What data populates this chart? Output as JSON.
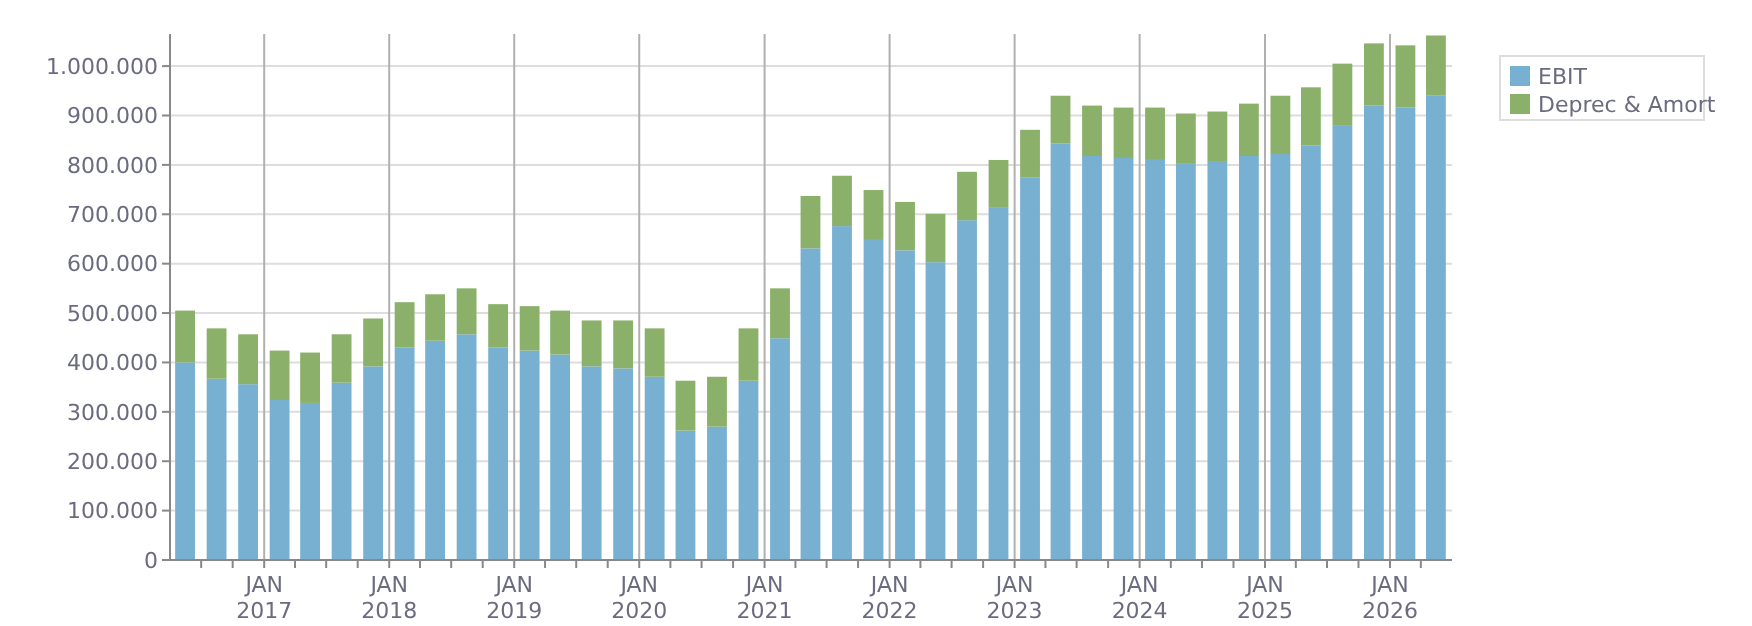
{
  "chart_data": {
    "type": "bar",
    "stacked": true,
    "legend": "top right",
    "grid": true,
    "x": [
      "2016-05-15",
      "2016-08-15",
      "2016-11-15",
      "2017-02-15",
      "2017-05-15",
      "2017-08-15",
      "2017-11-15",
      "2018-02-15",
      "2018-05-15",
      "2018-08-15",
      "2018-11-15",
      "2019-02-15",
      "2019-05-15",
      "2019-08-15",
      "2019-11-15",
      "2020-02-15",
      "2020-05-15",
      "2020-08-15",
      "2020-11-15",
      "2021-02-15",
      "2021-05-15",
      "2021-08-15",
      "2021-11-15",
      "2022-02-15",
      "2022-05-15",
      "2022-08-15",
      "2022-11-15",
      "2023-02-15",
      "2023-05-15",
      "2023-08-15",
      "2023-11-15",
      "2024-02-15",
      "2024-05-15",
      "2024-08-15",
      "2024-11-15",
      "2025-02-15",
      "2025-05-15",
      "2025-08-15",
      "2025-11-15",
      "2026-02-15",
      "2026-05-15"
    ],
    "series": [
      {
        "name": "EBIT",
        "color": "#78b0d2",
        "values": [
          400000,
          367000,
          356000,
          324000,
          318000,
          359000,
          392000,
          430000,
          444000,
          457000,
          430000,
          424000,
          416000,
          392000,
          388000,
          371000,
          262000,
          270000,
          363000,
          449000,
          631000,
          676000,
          648000,
          627000,
          603000,
          688000,
          713000,
          774000,
          843000,
          818000,
          814000,
          810000,
          802000,
          806000,
          818000,
          822000,
          839000,
          879000,
          920000,
          916000,
          940000
        ]
      },
      {
        "name": "Deprec & Amort",
        "color": "#8ab06a",
        "values": [
          105000,
          102000,
          101000,
          100000,
          102000,
          98000,
          97000,
          92000,
          94000,
          93000,
          88000,
          90000,
          89000,
          93000,
          97000,
          98000,
          101000,
          101000,
          106000,
          101000,
          106000,
          102000,
          101000,
          98000,
          98000,
          98000,
          97000,
          97000,
          97000,
          102000,
          102000,
          106000,
          102000,
          102000,
          106000,
          118000,
          118000,
          126000,
          126000,
          126000,
          122000
        ]
      }
    ],
    "xlim": [
      "2016-04-01",
      "2026-07-01"
    ],
    "xticks": [
      {
        "value": "2016-07-01",
        "label": null
      },
      {
        "value": "2016-10-01",
        "label": null
      },
      {
        "value": "2017-01-01",
        "label": "JAN 2017"
      },
      {
        "value": "2017-04-01",
        "label": null
      },
      {
        "value": "2017-07-01",
        "label": null
      },
      {
        "value": "2017-10-01",
        "label": null
      },
      {
        "value": "2018-01-01",
        "label": "JAN 2018"
      },
      {
        "value": "2018-04-01",
        "label": null
      },
      {
        "value": "2018-07-01",
        "label": null
      },
      {
        "value": "2018-10-01",
        "label": null
      },
      {
        "value": "2019-01-01",
        "label": "JAN 2019"
      },
      {
        "value": "2019-04-01",
        "label": null
      },
      {
        "value": "2019-07-01",
        "label": null
      },
      {
        "value": "2019-10-01",
        "label": null
      },
      {
        "value": "2020-01-01",
        "label": "JAN 2020"
      },
      {
        "value": "2020-04-01",
        "label": null
      },
      {
        "value": "2020-07-01",
        "label": null
      },
      {
        "value": "2020-10-01",
        "label": null
      },
      {
        "value": "2021-01-01",
        "label": "JAN 2021"
      },
      {
        "value": "2021-04-01",
        "label": null
      },
      {
        "value": "2021-07-01",
        "label": null
      },
      {
        "value": "2021-10-01",
        "label": null
      },
      {
        "value": "2022-01-01",
        "label": "JAN 2022"
      },
      {
        "value": "2022-04-01",
        "label": null
      },
      {
        "value": "2022-07-01",
        "label": null
      },
      {
        "value": "2022-10-01",
        "label": null
      },
      {
        "value": "2023-01-01",
        "label": "JAN 2023"
      },
      {
        "value": "2023-04-01",
        "label": null
      },
      {
        "value": "2023-07-01",
        "label": null
      },
      {
        "value": "2023-10-01",
        "label": null
      },
      {
        "value": "2024-01-01",
        "label": "JAN 2024"
      },
      {
        "value": "2024-04-01",
        "label": null
      },
      {
        "value": "2024-07-01",
        "label": null
      },
      {
        "value": "2024-10-01",
        "label": null
      },
      {
        "value": "2025-01-01",
        "label": "JAN 2025"
      },
      {
        "value": "2025-04-01",
        "label": null
      },
      {
        "value": "2025-07-01",
        "label": null
      },
      {
        "value": "2025-10-01",
        "label": null
      },
      {
        "value": "2026-01-01",
        "label": "JAN 2026"
      },
      {
        "value": "2026-04-01",
        "label": null
      }
    ],
    "ylim": [
      0,
      1065000
    ],
    "yticks": [
      0,
      {
        "value": 100000,
        "label": "100.000"
      },
      {
        "value": 200000,
        "label": "200.000"
      },
      {
        "value": 300000,
        "label": "300.000"
      },
      {
        "value": 400000,
        "label": "400.000"
      },
      {
        "value": 500000,
        "label": "500.000"
      },
      {
        "value": 600000,
        "label": "600.000"
      },
      {
        "value": 700000,
        "label": "700.000"
      },
      {
        "value": 800000,
        "label": "800.000"
      },
      {
        "value": 900000,
        "label": "900.000"
      },
      {
        "value": 1000000,
        "label": "1.000.000"
      }
    ]
  }
}
